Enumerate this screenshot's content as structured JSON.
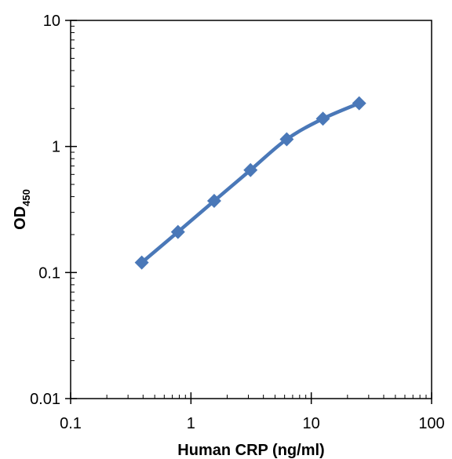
{
  "chart_data": {
    "type": "scatter",
    "title": "",
    "xlabel": "Human CRP (ng/ml)",
    "ylabel": {
      "main": "OD",
      "subscript": "450"
    },
    "xscale": "log",
    "yscale": "log",
    "xlim": [
      0.1,
      100
    ],
    "ylim": [
      0.01,
      10
    ],
    "x_tick_labels": [
      "0.1",
      "1",
      "10",
      "100"
    ],
    "y_tick_labels": [
      "0.01",
      "0.1",
      "1",
      "10"
    ],
    "grid": false,
    "legend": "none",
    "series": [
      {
        "x": [
          0.39,
          0.78,
          1.56,
          3.125,
          6.25,
          12.5,
          25
        ],
        "y": [
          0.12,
          0.21,
          0.37,
          0.65,
          1.14,
          1.66,
          2.2
        ],
        "color": "#4a78b8",
        "marker": "diamond",
        "line": "smooth"
      }
    ]
  }
}
